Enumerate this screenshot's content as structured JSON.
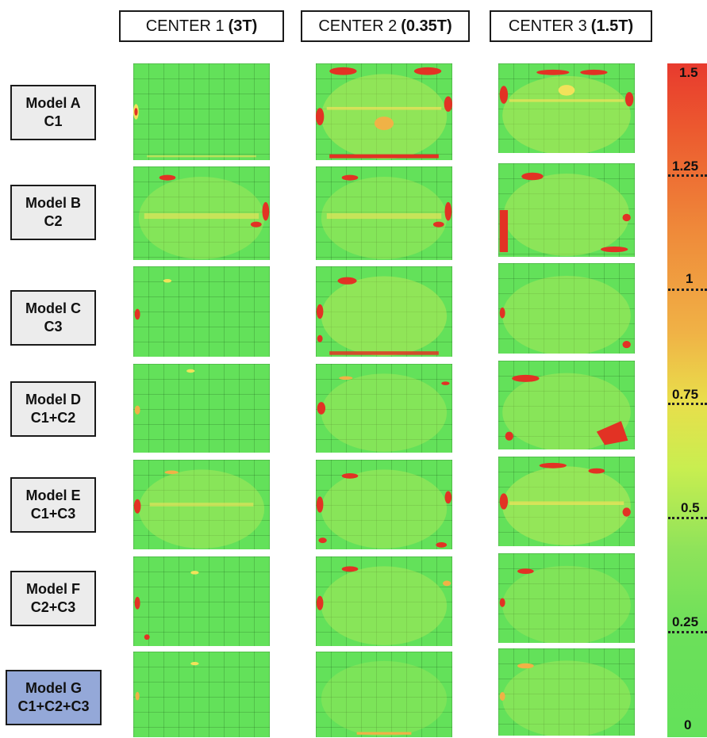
{
  "columns": [
    {
      "name": "CENTER 1",
      "field": "(3T)"
    },
    {
      "name": "CENTER 2",
      "field": "(0.35T)"
    },
    {
      "name": "CENTER 3",
      "field": "(1.5T)"
    }
  ],
  "rows": [
    {
      "model": "Model A",
      "training": "C1"
    },
    {
      "model": "Model B",
      "training": "C2"
    },
    {
      "model": "Model C",
      "training": "C3"
    },
    {
      "model": "Model D",
      "training": "C1+C2"
    },
    {
      "model": "Model E",
      "training": "C1+C3"
    },
    {
      "model": "Model F",
      "training": "C2+C3"
    },
    {
      "model": "Model G",
      "training": "C1+C2+C3"
    }
  ],
  "highlighted_row": "Model G",
  "colorbar": {
    "ticks": [
      "1.5",
      "1.25",
      "1",
      "0.75",
      "0.5",
      "0.25",
      "0"
    ],
    "colors": {
      "high": "#e83a2e",
      "mid": "#e9de4b",
      "low": "#63e15a"
    }
  },
  "colors": {
    "tile_background": "#63e15a",
    "hotspot": "#e23224",
    "warm": "#f2e25a",
    "highlight_label": "#94a8d8"
  }
}
